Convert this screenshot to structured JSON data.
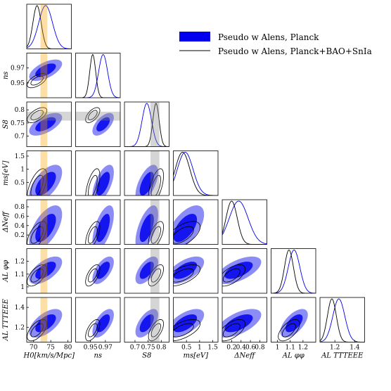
{
  "chart_data": {
    "type": "triangle-corner-plot",
    "parameters": [
      {
        "key": "H0",
        "label": "H0[km/s/Mpc]",
        "range": [
          68,
          81
        ],
        "ticks": [
          70,
          75,
          80
        ]
      },
      {
        "key": "ns",
        "label": "ns",
        "range": [
          0.93,
          0.99
        ],
        "ticks": [
          0.95,
          0.97
        ]
      },
      {
        "key": "S8",
        "label": "S8",
        "range": [
          0.66,
          0.83
        ],
        "ticks": [
          0.7,
          0.75,
          0.8
        ]
      },
      {
        "key": "ms",
        "label": "ms[eV]",
        "range": [
          0.0,
          1.7
        ],
        "ticks": [
          0.5,
          1.0,
          1.5
        ]
      },
      {
        "key": "Neff",
        "label": "ΔNeff",
        "range": [
          0.0,
          0.95
        ],
        "ticks": [
          0.2,
          0.4,
          0.6,
          0.8
        ]
      },
      {
        "key": "ALphi",
        "label": "AL φφ",
        "range": [
          0.95,
          1.3
        ],
        "ticks": [
          1.0,
          1.1,
          1.2
        ]
      },
      {
        "key": "ALTT",
        "label": "AL TTTEEE",
        "range": [
          1.05,
          1.5
        ],
        "ticks": [
          1.2,
          1.4
        ]
      }
    ],
    "series": [
      {
        "name": "Pseudo w Alens, Planck",
        "color": "#0000ee",
        "style": "filled",
        "means": {
          "H0": 73.5,
          "ns": 0.967,
          "S8": 0.745,
          "ms": 0.45,
          "Neff": 0.35,
          "ALphi": 1.13,
          "ALTT": 1.24
        },
        "sigmas": {
          "H0": 2.0,
          "ns": 0.006,
          "S8": 0.018,
          "ms": 0.3,
          "Neff": 0.2,
          "ALphi": 0.045,
          "ALTT": 0.06
        }
      },
      {
        "name": "Pseudo w Alens, Planck+BAO+SnIa",
        "color": "#000000",
        "style": "lines",
        "means": {
          "H0": 71.0,
          "ns": 0.953,
          "S8": 0.78,
          "ms": 0.35,
          "Neff": 0.2,
          "ALphi": 1.09,
          "ALTT": 1.17
        },
        "sigmas": {
          "H0": 1.2,
          "ns": 0.004,
          "S8": 0.012,
          "ms": 0.28,
          "Neff": 0.12,
          "ALphi": 0.035,
          "ALTT": 0.045
        }
      }
    ],
    "priors": [
      {
        "param": "H0",
        "center": 73.0,
        "width": 1.0,
        "color": "#f4a300"
      },
      {
        "param": "S8",
        "center": 0.776,
        "width": 0.017,
        "color": "#888888"
      }
    ],
    "legend": {
      "placement": "top-right"
    }
  }
}
